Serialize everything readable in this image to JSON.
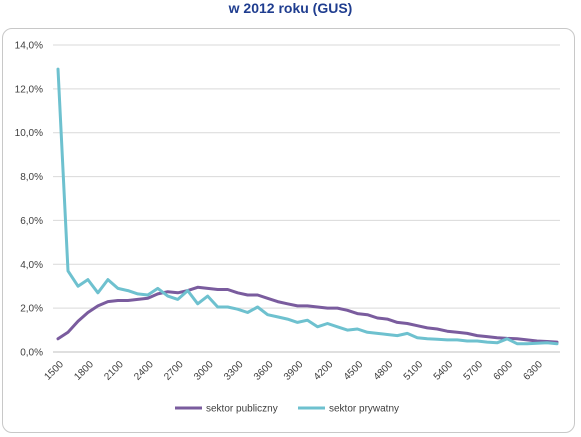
{
  "title": "w 2012 roku (GUS)",
  "chart_data": {
    "type": "line",
    "title": "w 2012 roku (GUS)",
    "xlabel": "",
    "ylabel": "",
    "x": [
      1500,
      1600,
      1700,
      1800,
      1900,
      2000,
      2100,
      2200,
      2300,
      2400,
      2500,
      2600,
      2700,
      2800,
      2900,
      3000,
      3100,
      3200,
      3300,
      3400,
      3500,
      3600,
      3700,
      3800,
      3900,
      4000,
      4100,
      4200,
      4300,
      4400,
      4500,
      4600,
      4700,
      4800,
      4900,
      5000,
      5100,
      5200,
      5300,
      5400,
      5500,
      5600,
      5700,
      5800,
      5900,
      6000,
      6100,
      6200,
      6300,
      6400,
      6500
    ],
    "x_ticks": [
      "1500",
      "1800",
      "2100",
      "2400",
      "2700",
      "3000",
      "3300",
      "3600",
      "3900",
      "4200",
      "4500",
      "4800",
      "5100",
      "5400",
      "5700",
      "6000",
      "6300"
    ],
    "y_ticks": [
      "0,0%",
      "2,0%",
      "4,0%",
      "6,0%",
      "8,0%",
      "10,0%",
      "12,0%",
      "14,0%"
    ],
    "ylim": [
      0,
      14
    ],
    "grid": true,
    "legend_position": "bottom",
    "series": [
      {
        "name": "sektor publiczny",
        "color": "#7a5c9e",
        "values": [
          0.6,
          0.9,
          1.4,
          1.8,
          2.1,
          2.3,
          2.35,
          2.35,
          2.4,
          2.45,
          2.65,
          2.75,
          2.7,
          2.8,
          2.95,
          2.9,
          2.85,
          2.85,
          2.7,
          2.6,
          2.6,
          2.45,
          2.3,
          2.2,
          2.1,
          2.1,
          2.05,
          2.0,
          2.0,
          1.9,
          1.75,
          1.7,
          1.55,
          1.5,
          1.35,
          1.3,
          1.2,
          1.1,
          1.05,
          0.95,
          0.9,
          0.85,
          0.75,
          0.7,
          0.65,
          0.62,
          0.6,
          0.55,
          0.5,
          0.48,
          0.45
        ]
      },
      {
        "name": "sektor prywatny",
        "color": "#6ec1cf",
        "values": [
          12.9,
          3.7,
          3.0,
          3.3,
          2.7,
          3.3,
          2.9,
          2.8,
          2.65,
          2.6,
          2.9,
          2.55,
          2.4,
          2.8,
          2.2,
          2.55,
          2.05,
          2.05,
          1.95,
          1.8,
          2.05,
          1.7,
          1.6,
          1.5,
          1.35,
          1.45,
          1.15,
          1.3,
          1.15,
          1.0,
          1.05,
          0.9,
          0.85,
          0.8,
          0.75,
          0.85,
          0.65,
          0.6,
          0.58,
          0.55,
          0.55,
          0.5,
          0.5,
          0.45,
          0.42,
          0.6,
          0.38,
          0.38,
          0.4,
          0.42,
          0.38
        ]
      }
    ]
  }
}
